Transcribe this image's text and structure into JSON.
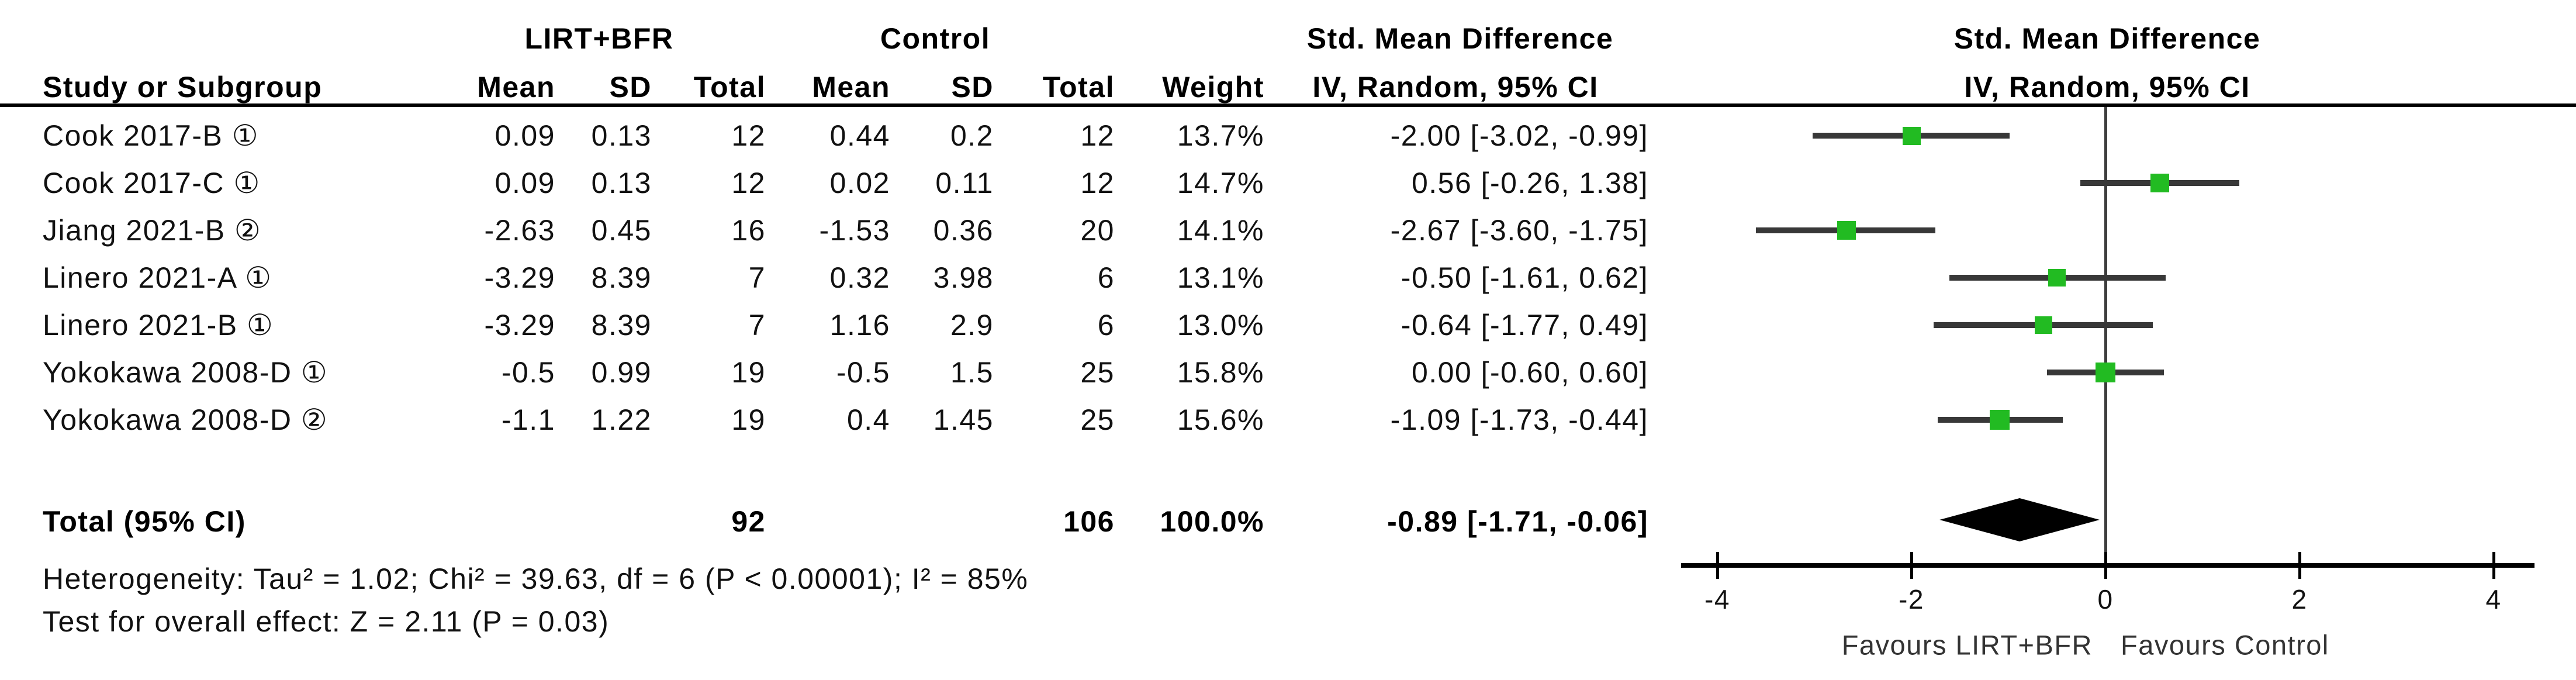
{
  "header": {
    "group1": "LIRT+BFR",
    "group2": "Control",
    "smd_left": "Std. Mean Difference",
    "smd_right": "Std. Mean Difference",
    "study_col": "Study or Subgroup",
    "mean1": "Mean",
    "sd1": "SD",
    "total1": "Total",
    "mean2": "Mean",
    "sd2": "SD",
    "total2": "Total",
    "weight": "Weight",
    "method_left": "IV, Random, 95% CI",
    "method_right": "IV, Random, 95% CI"
  },
  "studies": [
    {
      "label": "Cook 2017-B ①",
      "mean1": "0.09",
      "sd1": "0.13",
      "total1": "12",
      "mean2": "0.44",
      "sd2": "0.2",
      "total2": "12",
      "weight": "13.7%",
      "ci_text": "-2.00 [-3.02, -0.99]"
    },
    {
      "label": "Cook 2017-C ①",
      "mean1": "0.09",
      "sd1": "0.13",
      "total1": "12",
      "mean2": "0.02",
      "sd2": "0.11",
      "total2": "12",
      "weight": "14.7%",
      "ci_text": "0.56 [-0.26, 1.38]"
    },
    {
      "label": "Jiang 2021-B ②",
      "mean1": "-2.63",
      "sd1": "0.45",
      "total1": "16",
      "mean2": "-1.53",
      "sd2": "0.36",
      "total2": "20",
      "weight": "14.1%",
      "ci_text": "-2.67 [-3.60, -1.75]"
    },
    {
      "label": "Linero 2021-A ①",
      "mean1": "-3.29",
      "sd1": "8.39",
      "total1": "7",
      "mean2": "0.32",
      "sd2": "3.98",
      "total2": "6",
      "weight": "13.1%",
      "ci_text": "-0.50 [-1.61, 0.62]"
    },
    {
      "label": "Linero 2021-B ①",
      "mean1": "-3.29",
      "sd1": "8.39",
      "total1": "7",
      "mean2": "1.16",
      "sd2": "2.9",
      "total2": "6",
      "weight": "13.0%",
      "ci_text": "-0.64 [-1.77, 0.49]"
    },
    {
      "label": "Yokokawa 2008-D ①",
      "mean1": "-0.5",
      "sd1": "0.99",
      "total1": "19",
      "mean2": "-0.5",
      "sd2": "1.5",
      "total2": "25",
      "weight": "15.8%",
      "ci_text": "0.00 [-0.60, 0.60]"
    },
    {
      "label": "Yokokawa 2008-D ②",
      "mean1": "-1.1",
      "sd1": "1.22",
      "total1": "19",
      "mean2": "0.4",
      "sd2": "1.45",
      "total2": "25",
      "weight": "15.6%",
      "ci_text": "-1.09 [-1.73, -0.44]"
    }
  ],
  "total_row": {
    "label": "Total (95% CI)",
    "total1": "92",
    "total2": "106",
    "weight": "100.0%",
    "ci_text": "-0.89 [-1.71, -0.06]"
  },
  "footnotes": {
    "heterogeneity": "Heterogeneity: Tau² = 1.02; Chi² = 39.63, df = 6 (P < 0.00001); I² = 85%",
    "overall_effect": "Test for overall effect: Z = 2.11 (P = 0.03)"
  },
  "axis_labels": {
    "favours_left": "Favours LIRT+BFR",
    "favours_right": "Favours Control"
  },
  "colors": {
    "marker_green": "#22bb22",
    "ci_line": "#383838",
    "diamond": "#000000"
  },
  "chart_data": {
    "type": "forest",
    "effect_measure": "Std. Mean Difference",
    "model": "IV, Random, 95% CI",
    "studies": [
      {
        "name": "Cook 2017-B ①",
        "estimate": -2.0,
        "ci_low": -3.02,
        "ci_high": -0.99,
        "weight": 13.7
      },
      {
        "name": "Cook 2017-C ①",
        "estimate": 0.56,
        "ci_low": -0.26,
        "ci_high": 1.38,
        "weight": 14.7
      },
      {
        "name": "Jiang 2021-B ②",
        "estimate": -2.67,
        "ci_low": -3.6,
        "ci_high": -1.75,
        "weight": 14.1
      },
      {
        "name": "Linero 2021-A ①",
        "estimate": -0.5,
        "ci_low": -1.61,
        "ci_high": 0.62,
        "weight": 13.1
      },
      {
        "name": "Linero 2021-B ①",
        "estimate": -0.64,
        "ci_low": -1.77,
        "ci_high": 0.49,
        "weight": 13.0
      },
      {
        "name": "Yokokawa 2008-D ①",
        "estimate": 0.0,
        "ci_low": -0.6,
        "ci_high": 0.6,
        "weight": 15.8
      },
      {
        "name": "Yokokawa 2008-D ②",
        "estimate": -1.09,
        "ci_low": -1.73,
        "ci_high": -0.44,
        "weight": 15.6
      }
    ],
    "total": {
      "estimate": -0.89,
      "ci_low": -1.71,
      "ci_high": -0.06,
      "n_experimental": 92,
      "n_control": 106,
      "weight": 100.0
    },
    "heterogeneity": {
      "tau2": 1.02,
      "chi2": 39.63,
      "df": 6,
      "p": "< 0.00001",
      "i2": "85%"
    },
    "overall_effect": {
      "z": 2.11,
      "p": 0.03
    },
    "xlim": [
      -4,
      4
    ],
    "ticks": [
      -4,
      -2,
      0,
      2,
      4
    ],
    "xlabel_left": "Favours LIRT+BFR",
    "xlabel_right": "Favours Control"
  }
}
